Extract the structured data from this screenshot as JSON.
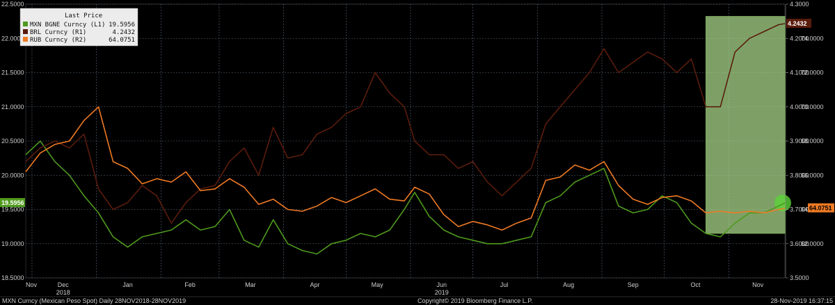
{
  "legend": {
    "header": "Last Price",
    "items": [
      {
        "label": "MXN BGNE Curncy  (L1)",
        "value": "19.5956",
        "color": "#4f9a1d"
      },
      {
        "label": "BRL Curncy  (R1)",
        "value": "4.2432",
        "color": "#5a1c0c"
      },
      {
        "label": "RUB Curncy  (R2)",
        "value": "64.0751",
        "color": "#f07a24"
      }
    ]
  },
  "footer": {
    "left": "MXN Curncy (Mexican Peso Spot)  Daily 28NOV2018-28NOV2019",
    "center": "Copyright© 2019 Bloomberg Finance L.P.",
    "right": "28-Nov-2019 16:37:15"
  },
  "last_labels": {
    "mxn": "19.5956",
    "brl": "4.2432",
    "rub": "64.0751"
  },
  "chart_data": {
    "type": "line",
    "x_axis": {
      "months": [
        "Nov",
        "Dec",
        "Jan",
        "Feb",
        "Mar",
        "Apr",
        "May",
        "Jun",
        "Jul",
        "Aug",
        "Sep",
        "Oct",
        "Nov"
      ],
      "year_labels": [
        {
          "after_month": "Dec",
          "label": "2018"
        },
        {
          "after_month": "Jun",
          "label": "2019"
        }
      ],
      "range": [
        "2018-11-28",
        "2019-11-28"
      ]
    },
    "y_left": {
      "min": 18.5,
      "max": 22.5,
      "ticks": [
        "18.5000",
        "19.0000",
        "19.5000",
        "20.0000",
        "20.5000",
        "21.0000",
        "21.5000",
        "22.0000",
        "22.5000"
      ]
    },
    "y_right1": {
      "min": 3.5,
      "max": 4.3,
      "ticks": [
        "3.5000",
        "3.6000",
        "3.7000",
        "3.8000",
        "3.9000",
        "4.0000",
        "4.1000",
        "4.2000",
        "4.3000"
      ]
    },
    "y_right2": {
      "min": 60,
      "max": 76,
      "ticks": [
        "62.0000",
        "64.0000",
        "66.0000",
        "68.0000",
        "70.0000",
        "72.0000",
        "74.0000"
      ]
    },
    "grid": true,
    "highlight": {
      "from": "2019-10-21",
      "to": "2019-11-28",
      "color": "#a8d58a"
    },
    "series": [
      {
        "name": "MXN BGNE Curncy",
        "axis": "L1",
        "color": "#4f9a1d",
        "points": [
          [
            "2018-11-28",
            20.3
          ],
          [
            "2018-12-05",
            20.5
          ],
          [
            "2018-12-12",
            20.2
          ],
          [
            "2018-12-19",
            20.0
          ],
          [
            "2018-12-26",
            19.7
          ],
          [
            "2019-01-02",
            19.45
          ],
          [
            "2019-01-09",
            19.1
          ],
          [
            "2019-01-16",
            18.95
          ],
          [
            "2019-01-23",
            19.1
          ],
          [
            "2019-01-30",
            19.15
          ],
          [
            "2019-02-06",
            19.2
          ],
          [
            "2019-02-13",
            19.35
          ],
          [
            "2019-02-20",
            19.2
          ],
          [
            "2019-02-27",
            19.25
          ],
          [
            "2019-03-06",
            19.5
          ],
          [
            "2019-03-13",
            19.05
          ],
          [
            "2019-03-20",
            18.95
          ],
          [
            "2019-03-27",
            19.35
          ],
          [
            "2019-04-03",
            19.0
          ],
          [
            "2019-04-10",
            18.9
          ],
          [
            "2019-04-17",
            18.85
          ],
          [
            "2019-04-24",
            19.0
          ],
          [
            "2019-05-01",
            19.05
          ],
          [
            "2019-05-08",
            19.15
          ],
          [
            "2019-05-15",
            19.1
          ],
          [
            "2019-05-22",
            19.2
          ],
          [
            "2019-05-29",
            19.5
          ],
          [
            "2019-06-03",
            19.75
          ],
          [
            "2019-06-10",
            19.4
          ],
          [
            "2019-06-17",
            19.2
          ],
          [
            "2019-06-24",
            19.1
          ],
          [
            "2019-07-01",
            19.05
          ],
          [
            "2019-07-08",
            19.0
          ],
          [
            "2019-07-15",
            19.0
          ],
          [
            "2019-07-22",
            19.05
          ],
          [
            "2019-07-29",
            19.1
          ],
          [
            "2019-08-05",
            19.6
          ],
          [
            "2019-08-12",
            19.7
          ],
          [
            "2019-08-19",
            19.9
          ],
          [
            "2019-08-26",
            20.0
          ],
          [
            "2019-09-02",
            20.1
          ],
          [
            "2019-09-09",
            19.55
          ],
          [
            "2019-09-16",
            19.45
          ],
          [
            "2019-09-23",
            19.5
          ],
          [
            "2019-09-30",
            19.7
          ],
          [
            "2019-10-07",
            19.6
          ],
          [
            "2019-10-14",
            19.3
          ],
          [
            "2019-10-21",
            19.15
          ],
          [
            "2019-10-28",
            19.1
          ],
          [
            "2019-11-04",
            19.3
          ],
          [
            "2019-11-11",
            19.45
          ],
          [
            "2019-11-18",
            19.45
          ],
          [
            "2019-11-25",
            19.55
          ],
          [
            "2019-11-28",
            19.5956
          ]
        ]
      },
      {
        "name": "BRL Curncy",
        "axis": "R1",
        "color": "#5a1c0c",
        "points": [
          [
            "2018-11-28",
            3.84
          ],
          [
            "2018-12-05",
            3.88
          ],
          [
            "2018-12-12",
            3.9
          ],
          [
            "2018-12-19",
            3.88
          ],
          [
            "2018-12-26",
            3.92
          ],
          [
            "2019-01-02",
            3.76
          ],
          [
            "2019-01-09",
            3.7
          ],
          [
            "2019-01-16",
            3.72
          ],
          [
            "2019-01-23",
            3.77
          ],
          [
            "2019-01-30",
            3.74
          ],
          [
            "2019-02-06",
            3.66
          ],
          [
            "2019-02-13",
            3.72
          ],
          [
            "2019-02-20",
            3.76
          ],
          [
            "2019-02-27",
            3.77
          ],
          [
            "2019-03-06",
            3.84
          ],
          [
            "2019-03-13",
            3.88
          ],
          [
            "2019-03-20",
            3.8
          ],
          [
            "2019-03-27",
            3.94
          ],
          [
            "2019-04-03",
            3.85
          ],
          [
            "2019-04-10",
            3.86
          ],
          [
            "2019-04-17",
            3.92
          ],
          [
            "2019-04-24",
            3.94
          ],
          [
            "2019-05-01",
            3.98
          ],
          [
            "2019-05-08",
            4.0
          ],
          [
            "2019-05-15",
            4.1
          ],
          [
            "2019-05-22",
            4.04
          ],
          [
            "2019-05-29",
            4.0
          ],
          [
            "2019-06-03",
            3.9
          ],
          [
            "2019-06-10",
            3.86
          ],
          [
            "2019-06-17",
            3.86
          ],
          [
            "2019-06-24",
            3.82
          ],
          [
            "2019-07-01",
            3.84
          ],
          [
            "2019-07-08",
            3.78
          ],
          [
            "2019-07-15",
            3.74
          ],
          [
            "2019-07-22",
            3.78
          ],
          [
            "2019-07-29",
            3.82
          ],
          [
            "2019-08-05",
            3.95
          ],
          [
            "2019-08-12",
            4.0
          ],
          [
            "2019-08-19",
            4.05
          ],
          [
            "2019-08-26",
            4.1
          ],
          [
            "2019-09-02",
            4.17
          ],
          [
            "2019-09-09",
            4.1
          ],
          [
            "2019-09-16",
            4.13
          ],
          [
            "2019-09-23",
            4.16
          ],
          [
            "2019-09-30",
            4.14
          ],
          [
            "2019-10-07",
            4.1
          ],
          [
            "2019-10-14",
            4.14
          ],
          [
            "2019-10-21",
            4.0
          ],
          [
            "2019-10-28",
            4.0
          ],
          [
            "2019-11-04",
            4.16
          ],
          [
            "2019-11-11",
            4.2
          ],
          [
            "2019-11-18",
            4.22
          ],
          [
            "2019-11-25",
            4.24
          ],
          [
            "2019-11-28",
            4.2432
          ]
        ]
      },
      {
        "name": "RUB Curncy",
        "axis": "R2",
        "color": "#f07a24",
        "points": [
          [
            "2018-11-28",
            66.2
          ],
          [
            "2018-12-05",
            67.3
          ],
          [
            "2018-12-12",
            67.8
          ],
          [
            "2018-12-19",
            68.0
          ],
          [
            "2018-12-26",
            69.2
          ],
          [
            "2019-01-02",
            70.0
          ],
          [
            "2019-01-09",
            66.8
          ],
          [
            "2019-01-16",
            66.4
          ],
          [
            "2019-01-23",
            65.5
          ],
          [
            "2019-01-30",
            65.8
          ],
          [
            "2019-02-06",
            65.6
          ],
          [
            "2019-02-13",
            66.2
          ],
          [
            "2019-02-20",
            65.1
          ],
          [
            "2019-02-27",
            65.2
          ],
          [
            "2019-03-06",
            65.8
          ],
          [
            "2019-03-13",
            65.3
          ],
          [
            "2019-03-20",
            64.3
          ],
          [
            "2019-03-27",
            64.6
          ],
          [
            "2019-04-03",
            64.0
          ],
          [
            "2019-04-10",
            63.9
          ],
          [
            "2019-04-17",
            64.2
          ],
          [
            "2019-04-24",
            64.7
          ],
          [
            "2019-05-01",
            64.4
          ],
          [
            "2019-05-08",
            64.8
          ],
          [
            "2019-05-15",
            65.2
          ],
          [
            "2019-05-22",
            64.6
          ],
          [
            "2019-05-29",
            64.5
          ],
          [
            "2019-06-03",
            65.3
          ],
          [
            "2019-06-10",
            64.9
          ],
          [
            "2019-06-17",
            63.7
          ],
          [
            "2019-06-24",
            63.0
          ],
          [
            "2019-07-01",
            63.3
          ],
          [
            "2019-07-08",
            63.1
          ],
          [
            "2019-07-15",
            62.8
          ],
          [
            "2019-07-22",
            63.2
          ],
          [
            "2019-07-29",
            63.5
          ],
          [
            "2019-08-05",
            65.7
          ],
          [
            "2019-08-12",
            65.9
          ],
          [
            "2019-08-19",
            66.6
          ],
          [
            "2019-08-26",
            66.3
          ],
          [
            "2019-09-02",
            66.8
          ],
          [
            "2019-09-09",
            65.4
          ],
          [
            "2019-09-16",
            64.6
          ],
          [
            "2019-09-23",
            64.3
          ],
          [
            "2019-09-30",
            64.7
          ],
          [
            "2019-10-07",
            64.8
          ],
          [
            "2019-10-14",
            64.5
          ],
          [
            "2019-10-21",
            63.8
          ],
          [
            "2019-10-28",
            63.9
          ],
          [
            "2019-11-04",
            63.8
          ],
          [
            "2019-11-11",
            63.9
          ],
          [
            "2019-11-18",
            63.8
          ],
          [
            "2019-11-25",
            64.0
          ],
          [
            "2019-11-28",
            64.0751
          ]
        ]
      }
    ]
  }
}
